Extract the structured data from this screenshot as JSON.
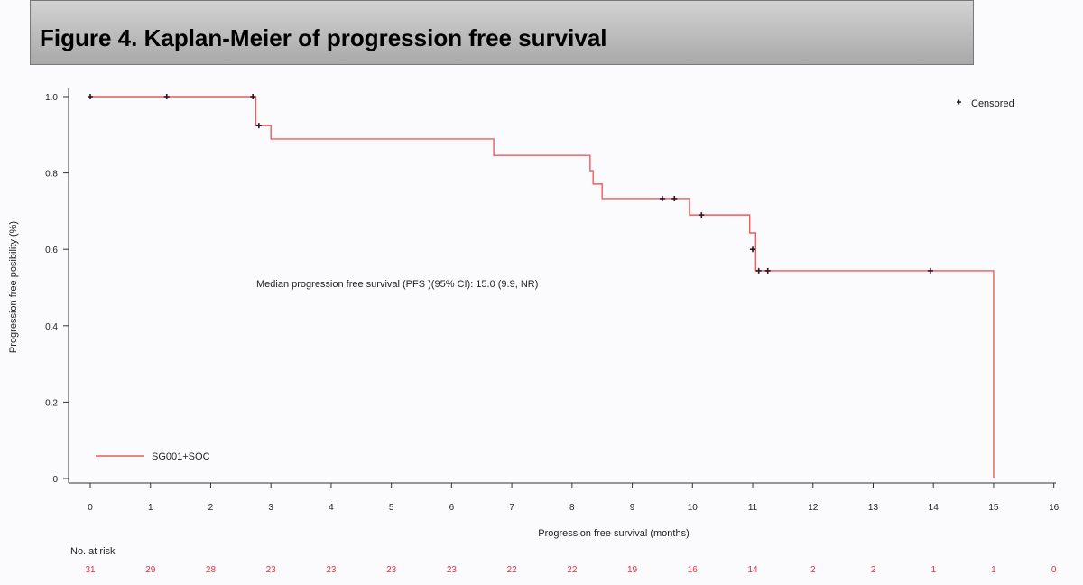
{
  "title": "Figure 4. Kaplan-Meier of progression free survival",
  "chart_data": {
    "type": "line",
    "subtype": "kaplan-meier step",
    "xlabel": "Progression free survival (months)",
    "ylabel": "Progression free posibility (%)",
    "xlim": [
      0,
      16
    ],
    "ylim": [
      0,
      1.0
    ],
    "xticks": [
      0,
      1,
      2,
      3,
      4,
      5,
      6,
      7,
      8,
      9,
      10,
      11,
      12,
      13,
      14,
      15,
      16
    ],
    "yticks": [
      0,
      0.2,
      0.4,
      0.6,
      0.8,
      1.0
    ],
    "ytick_labels": [
      "0",
      "0.2",
      "0.4",
      "0.6",
      "0.8",
      "1.0"
    ],
    "grid": false,
    "line_color": "#f05a5a",
    "series": [
      {
        "name": "SG001+SOC",
        "steps": [
          [
            0,
            1.0
          ],
          [
            2.75,
            0.924
          ],
          [
            3.0,
            0.889
          ],
          [
            6.7,
            0.846
          ],
          [
            8.3,
            0.806
          ],
          [
            8.35,
            0.771
          ],
          [
            8.5,
            0.733
          ],
          [
            9.95,
            0.69
          ],
          [
            10.95,
            0.643
          ],
          [
            11.05,
            0.544
          ],
          [
            15.0,
            0.0
          ]
        ],
        "censored": [
          [
            0,
            1.0
          ],
          [
            1.27,
            1.0
          ],
          [
            2.7,
            1.0
          ],
          [
            2.8,
            0.924
          ],
          [
            9.5,
            0.733
          ],
          [
            9.7,
            0.733
          ],
          [
            10.15,
            0.69
          ],
          [
            11.0,
            0.6
          ],
          [
            11.1,
            0.544
          ],
          [
            11.25,
            0.544
          ],
          [
            13.95,
            0.544
          ]
        ]
      }
    ],
    "legend": {
      "position": "bottom-left",
      "censored_label": "Censored",
      "censored_position": "top-right"
    },
    "annotation": "Median progression free survival (PFS )(95% CI): 15.0 (9.9, NR)",
    "risk_table": {
      "label": "No. at risk",
      "values": [
        31,
        29,
        28,
        23,
        23,
        23,
        23,
        22,
        22,
        19,
        16,
        14,
        2,
        2,
        1,
        1,
        0
      ]
    }
  }
}
